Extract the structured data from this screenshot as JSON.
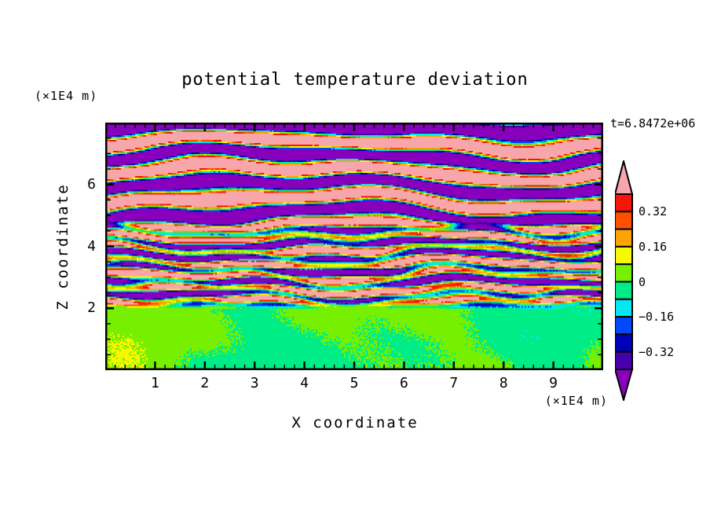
{
  "title": "potential temperature deviation",
  "timestamp_label": "t=6.8472e+06",
  "axes": {
    "x": {
      "label": "X coordinate",
      "unit": "(×1E4 m)",
      "min": 0,
      "max": 10,
      "major_ticks": [
        1,
        2,
        3,
        4,
        5,
        6,
        7,
        8,
        9
      ],
      "minor_step": 0.2
    },
    "z": {
      "label": "Z coordinate",
      "unit": "(×1E4 m)",
      "min": 0,
      "max": 8,
      "major_ticks": [
        2,
        4,
        6
      ],
      "minor_step": 0.5
    }
  },
  "colorbar": {
    "labels": [
      "0.32",
      "0.16",
      "0",
      "−0.16",
      "−0.32"
    ],
    "label_values": [
      0.32,
      0.16,
      0,
      -0.16,
      -0.32
    ],
    "levels": [
      -0.4,
      -0.32,
      -0.24,
      -0.16,
      -0.08,
      0,
      0.08,
      0.16,
      0.24,
      0.32,
      0.4
    ],
    "colors_low_to_high": [
      "#4400aa",
      "#0000b4",
      "#0048f8",
      "#00e8f4",
      "#00ec86",
      "#76f000",
      "#f8f800",
      "#ffa300",
      "#ff5000",
      "#f81508"
    ],
    "under_color": "#8800bb",
    "over_color": "#f7a6ab",
    "frame_color": "#000000"
  },
  "chart_data": {
    "type": "heatmap",
    "title": "potential temperature deviation",
    "xlabel": "X coordinate (×1E4 m)",
    "ylabel": "Z coordinate (×1E4 m)",
    "time_annotation": "t=6.8472e+06",
    "x_range": [
      0,
      10
    ],
    "z_range": [
      0,
      8
    ],
    "grid": false,
    "legend_position": "right-colorbar",
    "contour_levels": [
      -0.4,
      -0.32,
      -0.24,
      -0.16,
      -0.08,
      0,
      0.08,
      0.16,
      0.24,
      0.32,
      0.4
    ],
    "palette_low_to_high": [
      "#4400aa",
      "#0000b4",
      "#0048f8",
      "#00e8f4",
      "#00ec86",
      "#76f000",
      "#f8f800",
      "#ffa300",
      "#ff5000",
      "#f81508"
    ],
    "palette_under": "#8800bb",
    "palette_over": "#f7a6ab",
    "structure": {
      "lower_region": {
        "z": [
          0,
          2.1
        ],
        "description": "near-zero deviation, broad green patches (|v| < 0.08)",
        "amplitude": 0.09
      },
      "middle_region": {
        "z": [
          2.1,
          4.8
        ],
        "description": "fine turbulent layering spanning full color range",
        "amplitude": 0.75,
        "layer_wavelength": 0.42,
        "large_wavelength": 1.1
      },
      "upper_region": {
        "z": [
          4.8,
          8
        ],
        "description": "thick alternating saturated wave bands beyond ±0.4 (pink / purple) with thin rainbow interfaces",
        "amplitude": 0.85,
        "band_wavelength": 0.95
      }
    }
  }
}
